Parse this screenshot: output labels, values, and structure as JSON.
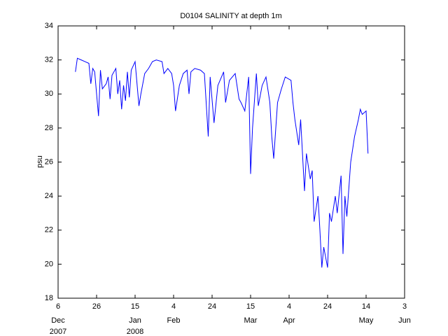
{
  "chart_data": {
    "type": "line",
    "title": "D0104 SALINITY at depth 1m",
    "y_label": "psu",
    "xlim": [
      "2007-12-06",
      "2008-06-03"
    ],
    "ylim": [
      18,
      34
    ],
    "yticks": [
      18,
      20,
      22,
      24,
      26,
      28,
      30,
      32,
      34
    ],
    "xticks": [
      {
        "value": "2007-12-06",
        "label": "6",
        "month": "Dec",
        "year": "2007"
      },
      {
        "value": "2007-12-26",
        "label": "26"
      },
      {
        "value": "2008-01-15",
        "label": "15",
        "month": "Jan",
        "year": "2008"
      },
      {
        "value": "2008-02-04",
        "label": "4",
        "month": "Feb"
      },
      {
        "value": "2008-02-24",
        "label": "24"
      },
      {
        "value": "2008-03-15",
        "label": "15",
        "month": "Mar"
      },
      {
        "value": "2008-04-04",
        "label": "4",
        "month": "Apr"
      },
      {
        "value": "2008-04-24",
        "label": "24"
      },
      {
        "value": "2008-05-14",
        "label": "14",
        "month": "May"
      },
      {
        "value": "2008-06-03",
        "label": "3",
        "month": "Jun"
      }
    ],
    "x": [
      "2007-12-15",
      "2007-12-16",
      "2007-12-18",
      "2007-12-20",
      "2007-12-22",
      "2007-12-23",
      "2007-12-24",
      "2007-12-25",
      "2007-12-27",
      "2007-12-28",
      "2007-12-29",
      "2007-12-31",
      "2008-01-01",
      "2008-01-02",
      "2008-01-03",
      "2008-01-05",
      "2008-01-06",
      "2008-01-07",
      "2008-01-08",
      "2008-01-09",
      "2008-01-10",
      "2008-01-11",
      "2008-01-12",
      "2008-01-13",
      "2008-01-15",
      "2008-01-17",
      "2008-01-18",
      "2008-01-20",
      "2008-01-22",
      "2008-01-24",
      "2008-01-26",
      "2008-01-29",
      "2008-01-30",
      "2008-02-01",
      "2008-02-03",
      "2008-02-04",
      "2008-02-05",
      "2008-02-07",
      "2008-02-09",
      "2008-02-11",
      "2008-02-12",
      "2008-02-13",
      "2008-02-15",
      "2008-02-18",
      "2008-02-20",
      "2008-02-22",
      "2008-02-23",
      "2008-02-25",
      "2008-02-27",
      "2008-03-01",
      "2008-03-02",
      "2008-03-04",
      "2008-03-07",
      "2008-03-09",
      "2008-03-10",
      "2008-03-12",
      "2008-03-14",
      "2008-03-15",
      "2008-03-16",
      "2008-03-18",
      "2008-03-19",
      "2008-03-21",
      "2008-03-23",
      "2008-03-25",
      "2008-03-26",
      "2008-03-27",
      "2008-03-29",
      "2008-03-31",
      "2008-04-02",
      "2008-04-05",
      "2008-04-06",
      "2008-04-07",
      "2008-04-09",
      "2008-04-10",
      "2008-04-12",
      "2008-04-13",
      "2008-04-15",
      "2008-04-16",
      "2008-04-17",
      "2008-04-19",
      "2008-04-20",
      "2008-04-21",
      "2008-04-22",
      "2008-04-24",
      "2008-04-25",
      "2008-04-26",
      "2008-04-28",
      "2008-04-29",
      "2008-05-01",
      "2008-05-02",
      "2008-05-03",
      "2008-05-04",
      "2008-05-06",
      "2008-05-08",
      "2008-05-10",
      "2008-05-11",
      "2008-05-12",
      "2008-05-14",
      "2008-05-15"
    ],
    "series": [
      {
        "name": "salinity",
        "color": "#0000ff",
        "values": [
          31.3,
          32.1,
          32.0,
          31.9,
          31.8,
          30.6,
          31.5,
          31.3,
          28.7,
          31.4,
          30.3,
          30.6,
          31.0,
          29.7,
          31.1,
          31.5,
          30.0,
          30.8,
          29.1,
          30.5,
          29.6,
          31.3,
          29.8,
          31.4,
          31.9,
          29.3,
          30.0,
          31.2,
          31.5,
          31.9,
          32.0,
          31.9,
          31.2,
          31.5,
          31.2,
          30.5,
          29.0,
          30.5,
          31.2,
          31.4,
          30.0,
          31.3,
          31.5,
          31.4,
          31.2,
          27.5,
          31.0,
          28.3,
          30.5,
          31.3,
          29.5,
          30.8,
          31.2,
          29.7,
          29.5,
          29.0,
          31.0,
          25.3,
          28.0,
          31.2,
          29.3,
          30.5,
          31.0,
          29.5,
          27.5,
          26.2,
          29.5,
          30.3,
          31.0,
          30.8,
          29.5,
          28.5,
          27.0,
          28.5,
          24.3,
          26.5,
          25.0,
          25.5,
          22.5,
          24.0,
          22.0,
          19.8,
          21.0,
          19.8,
          23.0,
          22.5,
          24.0,
          23.0,
          25.2,
          20.6,
          24.0,
          22.8,
          26.0,
          27.5,
          28.5,
          29.1,
          28.8,
          29.0,
          26.5
        ]
      }
    ]
  }
}
